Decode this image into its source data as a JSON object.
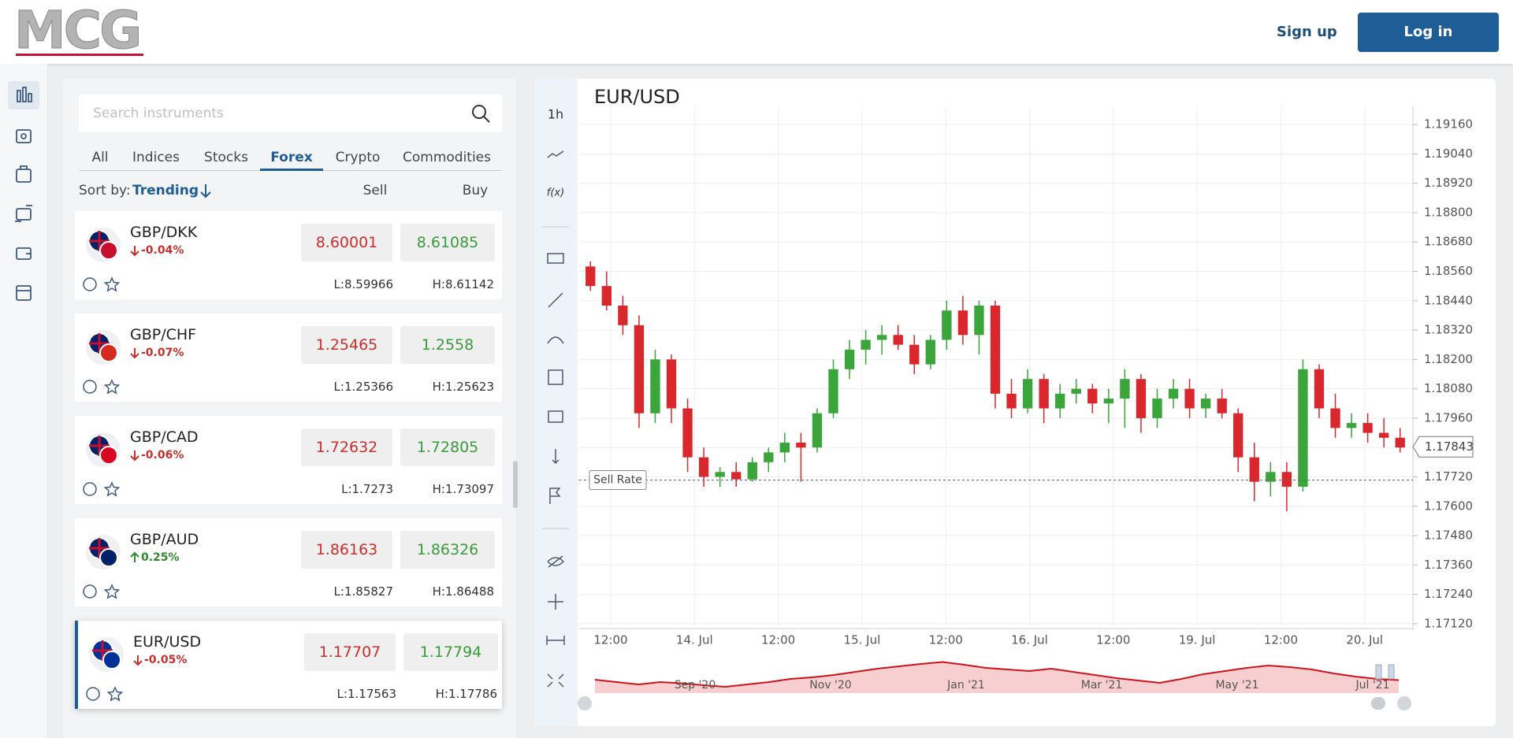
{
  "header": {
    "logo": "MCG",
    "sign_up": "Sign up",
    "log_in": "Log in"
  },
  "search": {
    "placeholder": "Search instruments"
  },
  "tabs": [
    "All",
    "Indices",
    "Stocks",
    "Forex",
    "Crypto",
    "Commodities"
  ],
  "active_tab": 3,
  "sort": {
    "label": "Sort by:",
    "value": "Trending",
    "sell": "Sell",
    "buy": "Buy"
  },
  "selected_instrument": 4,
  "instruments": [
    {
      "symbol": "GBP/DKK",
      "change": "-0.04%",
      "sell": "8.60001",
      "buy": "8.61085",
      "low": "L:8.59966",
      "high": "H:8.61142"
    },
    {
      "symbol": "GBP/CHF",
      "change": "-0.07%",
      "sell": "1.25465",
      "buy": "1.2558",
      "low": "L:1.25366",
      "high": "H:1.25623"
    },
    {
      "symbol": "GBP/CAD",
      "change": "-0.06%",
      "sell": "1.72632",
      "buy": "1.72805",
      "low": "L:1.7273",
      "high": "H:1.73097"
    },
    {
      "symbol": "GBP/AUD",
      "change": "0.25%",
      "sell": "1.86163",
      "buy": "1.86326",
      "low": "L:1.85827",
      "high": "H:1.86488"
    },
    {
      "symbol": "EUR/USD",
      "change": "-0.05%",
      "sell": "1.17707",
      "buy": "1.17794",
      "low": "L:1.17563",
      "high": "H:1.17786"
    }
  ],
  "chart_data": {
    "type": "candlestick",
    "title": "EUR/USD",
    "timeframe": "1h",
    "function_label": "f(x)",
    "up_color": "#3aa53a",
    "down_color": "#d9272e",
    "ylim": [
      1.1711,
      1.1917
    ],
    "yticks": [
      {
        "value": 1.1916,
        "label": "1.19160"
      },
      {
        "value": 1.1904,
        "label": "1.19040"
      },
      {
        "value": 1.1892,
        "label": "1.18920"
      },
      {
        "value": 1.188,
        "label": "1.18800"
      },
      {
        "value": 1.1868,
        "label": "1.18680"
      },
      {
        "value": 1.1856,
        "label": "1.18560"
      },
      {
        "value": 1.1844,
        "label": "1.18440"
      },
      {
        "value": 1.1832,
        "label": "1.18320"
      },
      {
        "value": 1.182,
        "label": "1.18200"
      },
      {
        "value": 1.1808,
        "label": "1.18080"
      },
      {
        "value": 1.1796,
        "label": "1.17960"
      },
      {
        "value": 1.1784,
        "label": "1.17840"
      },
      {
        "value": 1.1772,
        "label": "1.17720"
      },
      {
        "value": 1.176,
        "label": "1.17600"
      },
      {
        "value": 1.1748,
        "label": "1.17480"
      },
      {
        "value": 1.1736,
        "label": "1.17360"
      },
      {
        "value": 1.1724,
        "label": "1.17240"
      },
      {
        "value": 1.1712,
        "label": "1.17120"
      }
    ],
    "x_labels": [
      "12:00",
      "14. Jul",
      "12:00",
      "15. Jul",
      "12:00",
      "16. Jul",
      "12:00",
      "19. Jul",
      "12:00",
      "20. Jul"
    ],
    "candles": {
      "open": [
        1.1858,
        1.185,
        1.1842,
        1.1834,
        1.1798,
        1.182,
        1.18,
        1.178,
        1.1772,
        1.1774,
        1.1771,
        1.1778,
        1.1782,
        1.1786,
        1.1784,
        1.1798,
        1.1816,
        1.1824,
        1.1828,
        1.183,
        1.1826,
        1.1818,
        1.1828,
        1.184,
        1.183,
        1.1842,
        1.1806,
        1.18,
        1.1812,
        1.18,
        1.1806,
        1.1808,
        1.1802,
        1.1804,
        1.1812,
        1.1796,
        1.1804,
        1.1808,
        1.18,
        1.1804,
        1.1798,
        1.178,
        1.177,
        1.1774,
        1.1768,
        1.1816,
        1.18,
        1.1792,
        1.1794,
        1.179,
        1.1788
      ],
      "high": [
        1.186,
        1.1856,
        1.1846,
        1.1838,
        1.1824,
        1.1822,
        1.1804,
        1.1784,
        1.1776,
        1.1778,
        1.178,
        1.1784,
        1.179,
        1.179,
        1.18,
        1.182,
        1.1828,
        1.1832,
        1.1834,
        1.1834,
        1.183,
        1.183,
        1.1844,
        1.1846,
        1.1844,
        1.1844,
        1.1812,
        1.1816,
        1.1814,
        1.181,
        1.1812,
        1.181,
        1.1808,
        1.1816,
        1.1814,
        1.1808,
        1.1812,
        1.1812,
        1.1806,
        1.1808,
        1.18,
        1.1786,
        1.1778,
        1.1778,
        1.182,
        1.1818,
        1.1806,
        1.1798,
        1.1798,
        1.1796,
        1.1792
      ],
      "low": [
        1.1848,
        1.184,
        1.183,
        1.1792,
        1.1794,
        1.1794,
        1.1774,
        1.1768,
        1.1768,
        1.1768,
        1.177,
        1.1774,
        1.1778,
        1.177,
        1.1782,
        1.1796,
        1.1812,
        1.1818,
        1.1822,
        1.1824,
        1.1814,
        1.1816,
        1.1824,
        1.1826,
        1.1822,
        1.18,
        1.1796,
        1.1798,
        1.1794,
        1.1796,
        1.1802,
        1.1798,
        1.1794,
        1.1792,
        1.179,
        1.1792,
        1.18,
        1.1796,
        1.1796,
        1.1796,
        1.1774,
        1.1762,
        1.1764,
        1.1758,
        1.1766,
        1.1796,
        1.1788,
        1.1788,
        1.1786,
        1.1784,
        1.1782
      ],
      "close": [
        1.185,
        1.1842,
        1.1834,
        1.1798,
        1.182,
        1.18,
        1.178,
        1.1772,
        1.1774,
        1.1771,
        1.1778,
        1.1782,
        1.1786,
        1.1784,
        1.1798,
        1.1816,
        1.1824,
        1.1828,
        1.183,
        1.1826,
        1.1818,
        1.1828,
        1.184,
        1.183,
        1.1842,
        1.1806,
        1.18,
        1.1812,
        1.18,
        1.1806,
        1.1808,
        1.1802,
        1.1804,
        1.1812,
        1.1796,
        1.1804,
        1.1808,
        1.18,
        1.1804,
        1.1798,
        1.178,
        1.177,
        1.1774,
        1.1768,
        1.1816,
        1.18,
        1.1792,
        1.1794,
        1.179,
        1.1788,
        1.1784
      ]
    },
    "current_price": 1.17843,
    "sell_rate": {
      "label": "Sell Rate",
      "value": 1.17707
    },
    "navigator": {
      "labels": [
        "Sep '20",
        "Nov '20",
        "Jan '21",
        "Mar '21",
        "May '21",
        "Jul '21"
      ],
      "ylim": [
        1.15,
        1.24
      ],
      "values": [
        1.184,
        1.178,
        1.172,
        1.178,
        1.175,
        1.17,
        1.166,
        1.172,
        1.178,
        1.186,
        1.19,
        1.196,
        1.204,
        1.212,
        1.218,
        1.224,
        1.229,
        1.222,
        1.214,
        1.21,
        1.206,
        1.212,
        1.204,
        1.196,
        1.188,
        1.182,
        1.176,
        1.186,
        1.198,
        1.206,
        1.214,
        1.22,
        1.216,
        1.21,
        1.2,
        1.192,
        1.186,
        1.183
      ]
    }
  }
}
